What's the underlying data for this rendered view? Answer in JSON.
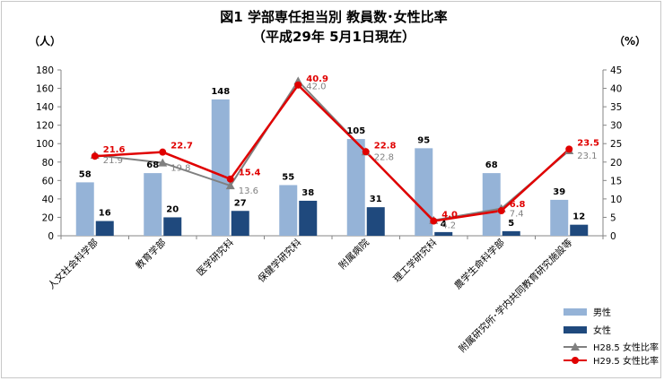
{
  "chart_data": {
    "type": "bar",
    "title": "図1  学部専任担当別  教員数･女性比率",
    "subtitle": "（平成29年  5月1日現在）",
    "y_left_label": "（人）",
    "y_right_label": "（%）",
    "y_left_ticks": [
      "0",
      "20",
      "40",
      "60",
      "80",
      "100",
      "120",
      "140",
      "160",
      "180"
    ],
    "y_right_ticks": [
      "0",
      "5",
      "10",
      "15",
      "20",
      "25",
      "30",
      "35",
      "40",
      "45"
    ],
    "ylim_left": [
      0,
      180
    ],
    "ylim_right": [
      0,
      45
    ],
    "categories": [
      "人文社会科学部",
      "教育学部",
      "医学研究科",
      "保健学研究科",
      "附属病院",
      "理工学研究科",
      "農学生命科学部",
      "附属研究所･学内共同教育研究施設等"
    ],
    "series": [
      {
        "name": "男性",
        "type": "bar",
        "axis": "left",
        "color": "#95b3d7",
        "values": [
          58,
          68,
          148,
          55,
          105,
          95,
          68,
          39
        ]
      },
      {
        "name": "女性",
        "type": "bar",
        "axis": "left",
        "color": "#1f497d",
        "values": [
          16,
          20,
          27,
          38,
          31,
          4,
          5,
          12
        ]
      },
      {
        "name": "H28.5 女性比率",
        "type": "line",
        "axis": "right",
        "color": "#808080",
        "marker": "triangle",
        "values": [
          21.9,
          19.8,
          13.6,
          42.0,
          22.8,
          4.2,
          7.4,
          23.1
        ]
      },
      {
        "name": "H29.5 女性比率",
        "type": "line",
        "axis": "right",
        "color": "#e00000",
        "marker": "circle",
        "values": [
          21.6,
          22.7,
          15.4,
          40.9,
          22.8,
          4.0,
          6.8,
          23.5
        ]
      }
    ],
    "value_labels": {
      "male": [
        "58",
        "68",
        "148",
        "55",
        "105",
        "95",
        "68",
        "39"
      ],
      "female": [
        "16",
        "20",
        "27",
        "38",
        "31",
        "4",
        "5",
        "12"
      ],
      "h28": [
        "21.9",
        "19.8",
        "13.6",
        "42.0",
        "22.8",
        "4.2",
        "7.4",
        "23.1"
      ],
      "h29": [
        "21.6",
        "22.7",
        "15.4",
        "40.9",
        "22.8",
        "4.0",
        "6.8",
        "23.5"
      ]
    },
    "legend": [
      "男性",
      "女性",
      "H28.5 女性比率",
      "H29.5 女性比率"
    ],
    "legend_position": "bottom-right",
    "grid": false
  }
}
